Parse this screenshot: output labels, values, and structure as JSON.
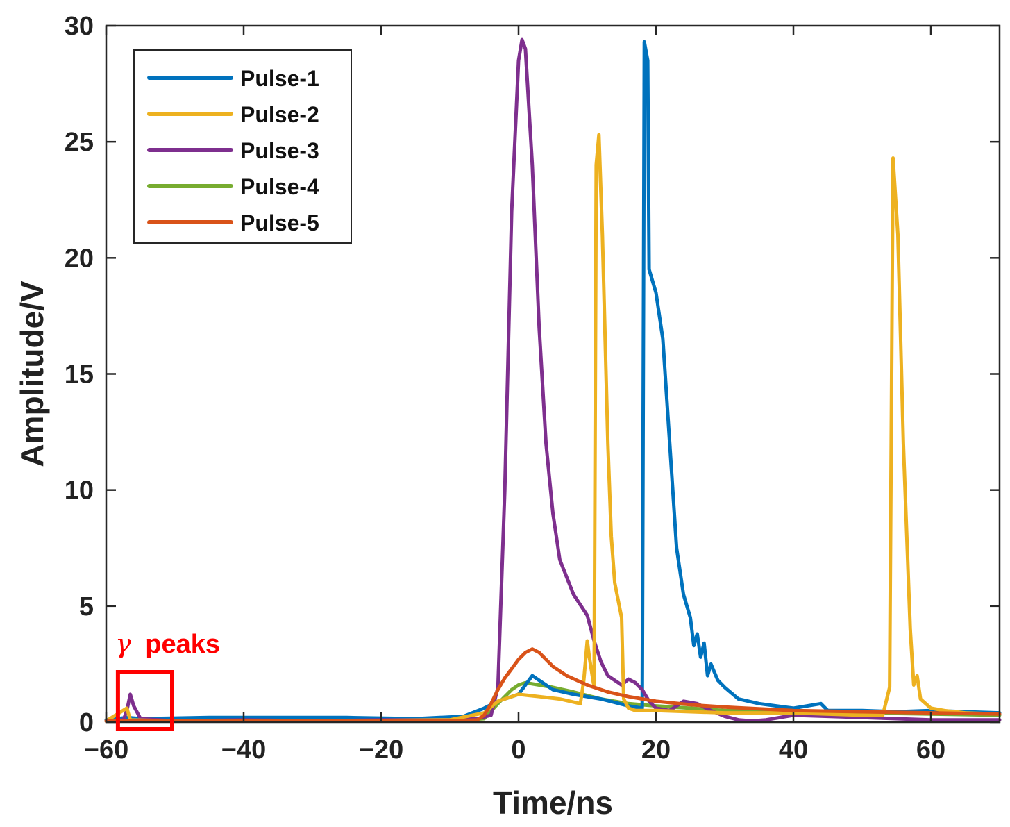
{
  "chart_data": {
    "type": "line",
    "title": "",
    "xlabel": "Time/ns",
    "ylabel": "Amplitude/V",
    "xlim": [
      -60,
      70
    ],
    "ylim": [
      0,
      30
    ],
    "xticks": [
      -60,
      -40,
      -20,
      0,
      20,
      40,
      60
    ],
    "xtick_labels": [
      "−60",
      "−40",
      "−20",
      "0",
      "20",
      "40",
      "60"
    ],
    "yticks": [
      0,
      5,
      10,
      15,
      20,
      25,
      30
    ],
    "ytick_labels": [
      "0",
      "5",
      "10",
      "15",
      "20",
      "25",
      "30"
    ],
    "grid": false,
    "legend_position": "top-left",
    "series": [
      {
        "name": "Pulse-1",
        "color": "#0072BD",
        "points": [
          [
            -60,
            0.1
          ],
          [
            -57,
            0.2
          ],
          [
            -55,
            0.15
          ],
          [
            -45,
            0.2
          ],
          [
            -35,
            0.2
          ],
          [
            -25,
            0.2
          ],
          [
            -15,
            0.15
          ],
          [
            -8,
            0.25
          ],
          [
            -5,
            0.6
          ],
          [
            -3,
            0.9
          ],
          [
            -1,
            1.1
          ],
          [
            0,
            1.2
          ],
          [
            1,
            1.6
          ],
          [
            2,
            2.0
          ],
          [
            3,
            1.8
          ],
          [
            5,
            1.4
          ],
          [
            8,
            1.2
          ],
          [
            12,
            1.0
          ],
          [
            16,
            0.7
          ],
          [
            18,
            0.6
          ],
          [
            18.3,
            29.3
          ],
          [
            18.8,
            28.5
          ],
          [
            19,
            19.5
          ],
          [
            20,
            18.5
          ],
          [
            21,
            16.5
          ],
          [
            22,
            12.0
          ],
          [
            23,
            7.5
          ],
          [
            24,
            5.5
          ],
          [
            25,
            4.5
          ],
          [
            25.5,
            3.3
          ],
          [
            26,
            3.8
          ],
          [
            26.5,
            2.8
          ],
          [
            27,
            3.4
          ],
          [
            27.5,
            2.0
          ],
          [
            28,
            2.5
          ],
          [
            29,
            1.8
          ],
          [
            30,
            1.5
          ],
          [
            32,
            1.0
          ],
          [
            35,
            0.8
          ],
          [
            40,
            0.6
          ],
          [
            44,
            0.8
          ],
          [
            45,
            0.5
          ],
          [
            50,
            0.5
          ],
          [
            55,
            0.45
          ],
          [
            60,
            0.5
          ],
          [
            65,
            0.45
          ],
          [
            70,
            0.4
          ]
        ]
      },
      {
        "name": "Pulse-2",
        "color": "#EDB120",
        "points": [
          [
            -60,
            0.05
          ],
          [
            -57,
            0.6
          ],
          [
            -56.5,
            0.1
          ],
          [
            -50,
            0.05
          ],
          [
            -30,
            0.05
          ],
          [
            -10,
            0.1
          ],
          [
            -5,
            0.4
          ],
          [
            -3,
            0.9
          ],
          [
            0,
            1.2
          ],
          [
            3,
            1.1
          ],
          [
            6,
            1.0
          ],
          [
            9,
            0.8
          ],
          [
            9.5,
            1.8
          ],
          [
            10,
            3.5
          ],
          [
            10.3,
            2.8
          ],
          [
            11,
            1.5
          ],
          [
            11.3,
            24.0
          ],
          [
            11.7,
            25.3
          ],
          [
            12.2,
            21.0
          ],
          [
            13,
            12.0
          ],
          [
            13.5,
            8.0
          ],
          [
            14,
            6.0
          ],
          [
            15,
            4.5
          ],
          [
            15.3,
            1.0
          ],
          [
            16,
            0.6
          ],
          [
            17,
            0.5
          ],
          [
            20,
            0.5
          ],
          [
            30,
            0.4
          ],
          [
            40,
            0.4
          ],
          [
            50,
            0.3
          ],
          [
            53,
            0.3
          ],
          [
            54,
            1.5
          ],
          [
            54.5,
            24.3
          ],
          [
            55.2,
            21.0
          ],
          [
            56,
            12.0
          ],
          [
            57,
            4.0
          ],
          [
            57.5,
            1.6
          ],
          [
            58,
            2.0
          ],
          [
            58.5,
            1.0
          ],
          [
            60,
            0.6
          ],
          [
            62,
            0.5
          ],
          [
            65,
            0.4
          ],
          [
            70,
            0.35
          ]
        ]
      },
      {
        "name": "Pulse-3",
        "color": "#7E2F8E",
        "points": [
          [
            -60,
            0.05
          ],
          [
            -57.5,
            0.1
          ],
          [
            -57,
            0.5
          ],
          [
            -56.5,
            1.2
          ],
          [
            -56,
            0.7
          ],
          [
            -55,
            0.15
          ],
          [
            -50,
            0.05
          ],
          [
            -40,
            0.1
          ],
          [
            -30,
            0.05
          ],
          [
            -20,
            0.1
          ],
          [
            -10,
            0.1
          ],
          [
            -6,
            0.15
          ],
          [
            -4,
            0.3
          ],
          [
            -3,
            1.5
          ],
          [
            -2,
            10.0
          ],
          [
            -1,
            22.0
          ],
          [
            0,
            28.5
          ],
          [
            0.5,
            29.4
          ],
          [
            1,
            29.0
          ],
          [
            2,
            24.0
          ],
          [
            3,
            17.0
          ],
          [
            4,
            12.0
          ],
          [
            5,
            9.0
          ],
          [
            6,
            7.0
          ],
          [
            8,
            5.5
          ],
          [
            10,
            4.6
          ],
          [
            11,
            3.5
          ],
          [
            12,
            2.6
          ],
          [
            13,
            2.0
          ],
          [
            14,
            1.8
          ],
          [
            15,
            1.6
          ],
          [
            16,
            1.85
          ],
          [
            17,
            1.7
          ],
          [
            18,
            1.4
          ],
          [
            19,
            0.9
          ],
          [
            20,
            0.6
          ],
          [
            22,
            0.5
          ],
          [
            24,
            0.9
          ],
          [
            26,
            0.8
          ],
          [
            28,
            0.5
          ],
          [
            30,
            0.25
          ],
          [
            32,
            0.1
          ],
          [
            34,
            0.05
          ],
          [
            36,
            0.1
          ],
          [
            40,
            0.3
          ],
          [
            45,
            0.25
          ],
          [
            50,
            0.2
          ],
          [
            55,
            0.15
          ],
          [
            60,
            0.1
          ],
          [
            65,
            0.1
          ],
          [
            70,
            0.1
          ]
        ]
      },
      {
        "name": "Pulse-4",
        "color": "#77AC30",
        "points": [
          [
            -60,
            0.05
          ],
          [
            -30,
            0.05
          ],
          [
            -10,
            0.05
          ],
          [
            -5,
            0.15
          ],
          [
            -3,
            0.8
          ],
          [
            -1,
            1.4
          ],
          [
            0,
            1.6
          ],
          [
            1,
            1.7
          ],
          [
            3,
            1.6
          ],
          [
            5,
            1.5
          ],
          [
            8,
            1.3
          ],
          [
            12,
            1.0
          ],
          [
            16,
            0.8
          ],
          [
            20,
            0.7
          ],
          [
            25,
            0.6
          ],
          [
            30,
            0.5
          ],
          [
            40,
            0.45
          ],
          [
            50,
            0.4
          ],
          [
            60,
            0.35
          ],
          [
            70,
            0.3
          ]
        ]
      },
      {
        "name": "Pulse-5",
        "color": "#D95319",
        "points": [
          [
            -60,
            0.05
          ],
          [
            -30,
            0.05
          ],
          [
            -10,
            0.05
          ],
          [
            -6,
            0.1
          ],
          [
            -5,
            0.3
          ],
          [
            -4,
            0.8
          ],
          [
            -3,
            1.4
          ],
          [
            -2,
            1.9
          ],
          [
            -1,
            2.3
          ],
          [
            0,
            2.7
          ],
          [
            1,
            3.0
          ],
          [
            2,
            3.15
          ],
          [
            3,
            3.0
          ],
          [
            4,
            2.7
          ],
          [
            5,
            2.4
          ],
          [
            7,
            2.0
          ],
          [
            10,
            1.6
          ],
          [
            13,
            1.3
          ],
          [
            16,
            1.1
          ],
          [
            20,
            0.9
          ],
          [
            25,
            0.75
          ],
          [
            30,
            0.65
          ],
          [
            40,
            0.5
          ],
          [
            50,
            0.45
          ],
          [
            60,
            0.4
          ],
          [
            70,
            0.35
          ]
        ]
      }
    ],
    "annotation": {
      "text": "γ peaks",
      "symbol": "γ",
      "word": "peaks",
      "color": "#FF0000",
      "box_x_range": [
        -59,
        -50
      ],
      "box_y_range": [
        -0.3,
        2.2
      ]
    }
  }
}
